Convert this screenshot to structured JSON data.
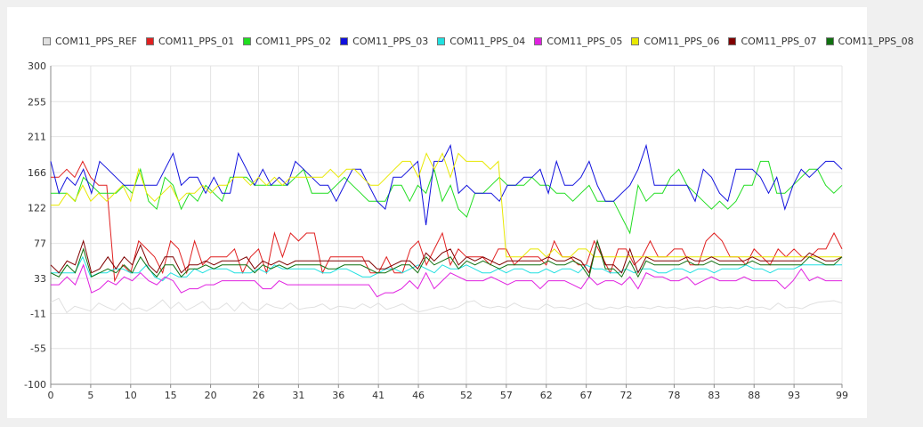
{
  "chart_data": {
    "type": "line",
    "title": "",
    "xlabel": "",
    "ylabel": "",
    "xlim": [
      0,
      99
    ],
    "ylim": [
      -100,
      300
    ],
    "grid": true,
    "legend_position": "top",
    "y_ticks": [
      "300",
      "255",
      "211",
      "166",
      "122",
      "77",
      "33",
      "-11",
      "-55",
      "-100"
    ],
    "x_ticks": [
      "0",
      "5",
      "10",
      "15",
      "20",
      "26",
      "31",
      "36",
      "41",
      "46",
      "52",
      "57",
      "62",
      "67",
      "72",
      "78",
      "83",
      "88",
      "93",
      "99"
    ],
    "series": [
      {
        "name": "COM11_PPS_REF",
        "color": "#e0e0e0",
        "values": [
          3,
          8,
          -10,
          -2,
          -5,
          -8,
          2,
          -3,
          -7,
          2,
          -6,
          -4,
          -8,
          -2,
          6,
          -5,
          3,
          -7,
          -2,
          4,
          -6,
          -5,
          2,
          -8,
          3,
          -5,
          -7,
          1,
          -3,
          -5,
          2,
          -6,
          -4,
          -3,
          1,
          -6,
          -2,
          -3,
          -5,
          1,
          -4,
          2,
          -6,
          -3,
          1,
          -5,
          -9,
          -7,
          -4,
          -2,
          -6,
          -3,
          3,
          5,
          -2,
          -4,
          -2,
          -4,
          2,
          -3,
          -5,
          -6,
          1,
          -4,
          -3,
          -5,
          -2,
          2,
          -4,
          -6,
          -3,
          -5,
          -2,
          -4,
          -3,
          -5,
          -2,
          -4,
          -3,
          -6,
          -4,
          -3,
          -5,
          -2,
          -4,
          -3,
          -5,
          -2,
          -4,
          -3,
          -6,
          2,
          -4,
          -3,
          -5,
          0,
          3,
          4,
          5,
          2
        ]
      },
      {
        "name": "COM11_PPS_01",
        "color": "#e02020",
        "values": [
          160,
          160,
          170,
          160,
          180,
          160,
          150,
          150,
          30,
          50,
          40,
          80,
          70,
          60,
          40,
          80,
          70,
          40,
          80,
          50,
          60,
          60,
          60,
          70,
          40,
          60,
          70,
          40,
          90,
          60,
          90,
          80,
          90,
          90,
          40,
          60,
          60,
          60,
          60,
          60,
          40,
          40,
          60,
          40,
          40,
          70,
          80,
          50,
          70,
          90,
          50,
          70,
          60,
          60,
          60,
          50,
          70,
          70,
          50,
          60,
          60,
          60,
          50,
          80,
          60,
          60,
          50,
          50,
          80,
          60,
          40,
          70,
          70,
          50,
          60,
          80,
          60,
          60,
          70,
          70,
          50,
          50,
          80,
          90,
          80,
          60,
          60,
          50,
          70,
          60,
          50,
          70,
          60,
          70,
          60,
          60,
          70,
          70,
          90,
          70
        ]
      },
      {
        "name": "COM11_PPS_02",
        "color": "#20dd20",
        "values": [
          140,
          140,
          140,
          130,
          160,
          150,
          140,
          140,
          140,
          150,
          140,
          170,
          130,
          120,
          160,
          150,
          120,
          140,
          130,
          150,
          140,
          130,
          160,
          160,
          160,
          150,
          150,
          150,
          150,
          150,
          160,
          170,
          140,
          140,
          140,
          150,
          160,
          150,
          140,
          130,
          130,
          130,
          150,
          150,
          130,
          150,
          140,
          170,
          130,
          150,
          120,
          110,
          140,
          140,
          150,
          160,
          150,
          150,
          150,
          160,
          150,
          150,
          140,
          140,
          130,
          140,
          150,
          130,
          130,
          130,
          110,
          90,
          150,
          130,
          140,
          140,
          160,
          170,
          150,
          140,
          130,
          120,
          130,
          120,
          130,
          150,
          150,
          180,
          180,
          140,
          140,
          150,
          160,
          170,
          170,
          150,
          140,
          150
        ]
      },
      {
        "name": "COM11_PPS_03",
        "color": "#1010dd",
        "values": [
          180,
          140,
          160,
          150,
          170,
          140,
          180,
          170,
          160,
          150,
          150,
          150,
          150,
          150,
          170,
          190,
          150,
          160,
          160,
          140,
          160,
          140,
          140,
          190,
          170,
          150,
          170,
          150,
          160,
          150,
          180,
          170,
          160,
          150,
          150,
          130,
          150,
          170,
          170,
          150,
          130,
          120,
          160,
          160,
          170,
          180,
          100,
          180,
          180,
          200,
          140,
          150,
          140,
          140,
          140,
          130,
          150,
          150,
          160,
          160,
          170,
          140,
          180,
          150,
          150,
          160,
          180,
          150,
          130,
          130,
          140,
          150,
          170,
          200,
          150,
          150,
          150,
          150,
          150,
          130,
          170,
          160,
          140,
          130,
          170,
          170,
          170,
          160,
          140,
          160,
          120,
          150,
          170,
          160,
          170,
          180,
          180,
          170
        ]
      },
      {
        "name": "COM11_PPS_04",
        "color": "#20e0e0",
        "values": [
          40,
          40,
          40,
          40,
          60,
          35,
          40,
          40,
          45,
          45,
          40,
          40,
          50,
          35,
          30,
          40,
          35,
          35,
          45,
          40,
          45,
          45,
          45,
          40,
          40,
          40,
          45,
          40,
          50,
          45,
          45,
          45,
          45,
          45,
          40,
          40,
          45,
          45,
          40,
          35,
          35,
          40,
          45,
          45,
          40,
          45,
          50,
          45,
          40,
          50,
          45,
          45,
          50,
          45,
          40,
          40,
          45,
          40,
          45,
          45,
          40,
          40,
          45,
          40,
          45,
          45,
          40,
          50,
          45,
          45,
          40,
          40,
          45,
          40,
          45,
          45,
          40,
          40,
          45,
          45,
          40,
          45,
          45,
          40,
          45,
          45,
          45,
          50,
          45,
          45,
          40,
          45,
          45,
          45,
          50,
          50,
          50,
          50,
          50,
          50
        ]
      },
      {
        "name": "COM11_PPS_05",
        "color": "#e020e0",
        "values": [
          25,
          25,
          35,
          25,
          50,
          15,
          20,
          30,
          25,
          35,
          30,
          40,
          30,
          25,
          35,
          30,
          15,
          20,
          20,
          25,
          25,
          30,
          30,
          30,
          30,
          30,
          20,
          20,
          30,
          25,
          25,
          25,
          25,
          25,
          25,
          25,
          25,
          25,
          25,
          25,
          10,
          15,
          15,
          20,
          30,
          20,
          40,
          20,
          30,
          40,
          35,
          30,
          30,
          30,
          35,
          30,
          25,
          30,
          30,
          30,
          20,
          30,
          30,
          30,
          25,
          20,
          35,
          25,
          30,
          30,
          25,
          35,
          20,
          40,
          35,
          35,
          30,
          30,
          35,
          25,
          30,
          35,
          30,
          30,
          30,
          35,
          30,
          30,
          30,
          30,
          20,
          30,
          45,
          30,
          35,
          30,
          30,
          30
        ]
      },
      {
        "name": "COM11_PPS_06",
        "color": "#e8e800",
        "values": [
          125,
          125,
          140,
          130,
          150,
          130,
          140,
          130,
          140,
          150,
          130,
          170,
          140,
          130,
          140,
          150,
          130,
          140,
          140,
          150,
          140,
          150,
          150,
          160,
          160,
          150,
          160,
          150,
          160,
          150,
          160,
          160,
          160,
          160,
          160,
          170,
          160,
          170,
          170,
          160,
          150,
          150,
          160,
          170,
          180,
          180,
          160,
          190,
          170,
          190,
          160,
          190,
          180,
          180,
          180,
          170,
          180,
          60,
          60,
          60,
          70,
          70,
          60,
          70,
          60,
          60,
          70,
          70,
          60,
          60,
          60,
          60,
          60,
          60,
          60,
          60,
          60,
          60,
          60,
          60,
          60,
          60,
          60,
          60,
          60,
          60,
          60,
          60,
          60,
          60,
          60,
          60,
          60,
          60,
          60,
          60,
          60,
          60,
          60,
          60
        ]
      },
      {
        "name": "COM11_PPS_07",
        "color": "#800000",
        "values": [
          50,
          40,
          55,
          50,
          80,
          40,
          45,
          60,
          45,
          60,
          50,
          75,
          50,
          40,
          60,
          60,
          40,
          50,
          50,
          55,
          50,
          55,
          55,
          55,
          60,
          45,
          55,
          50,
          55,
          50,
          55,
          55,
          55,
          55,
          55,
          55,
          55,
          55,
          55,
          55,
          45,
          45,
          50,
          55,
          55,
          45,
          65,
          55,
          65,
          70,
          50,
          60,
          55,
          60,
          55,
          50,
          55,
          55,
          55,
          55,
          55,
          60,
          55,
          55,
          60,
          55,
          40,
          80,
          50,
          50,
          40,
          70,
          40,
          60,
          55,
          55,
          55,
          55,
          60,
          55,
          55,
          60,
          55,
          55,
          55,
          55,
          60,
          55,
          55,
          55,
          55,
          55,
          55,
          65,
          60,
          55,
          55,
          60
        ]
      },
      {
        "name": "COM11_PPS_08",
        "color": "#107010",
        "values": [
          40,
          35,
          50,
          40,
          70,
          35,
          40,
          45,
          40,
          50,
          40,
          60,
          45,
          35,
          50,
          50,
          35,
          45,
          45,
          50,
          45,
          50,
          50,
          50,
          50,
          40,
          50,
          45,
          50,
          45,
          50,
          50,
          50,
          50,
          45,
          45,
          50,
          50,
          50,
          45,
          40,
          40,
          45,
          50,
          50,
          40,
          60,
          50,
          55,
          60,
          45,
          55,
          50,
          55,
          50,
          45,
          50,
          50,
          50,
          50,
          50,
          55,
          50,
          50,
          55,
          50,
          35,
          80,
          45,
          45,
          35,
          55,
          35,
          55,
          50,
          50,
          50,
          50,
          55,
          50,
          50,
          55,
          50,
          50,
          50,
          50,
          55,
          50,
          50,
          50,
          50,
          50,
          50,
          60,
          55,
          50,
          50,
          60
        ]
      }
    ]
  }
}
